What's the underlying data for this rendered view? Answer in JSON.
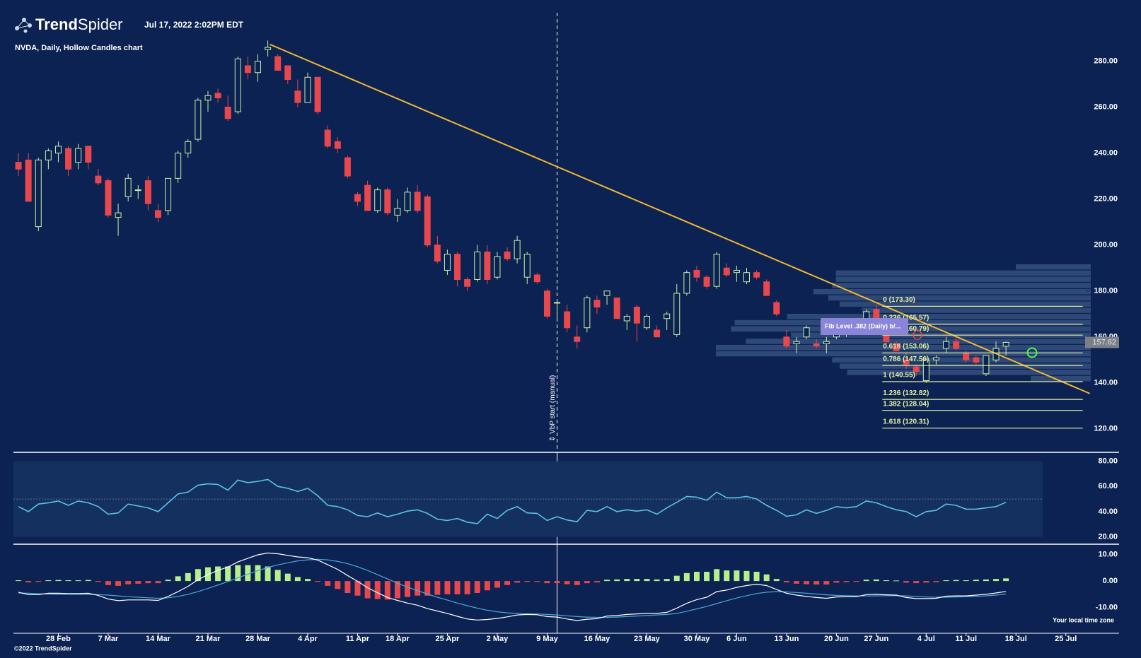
{
  "header": {
    "brand_bold": "Trend",
    "brand_light": "Spider",
    "timestamp": "Jul 17, 2022 2:02PM EDT"
  },
  "footer": {
    "copyright": "©2022 TrendSpider",
    "timezone": "Your local time zone"
  },
  "chart_data": [
    {
      "type": "candlestick",
      "title": "NVDA, Daily, Hollow Candles chart",
      "open": [
        236,
        237,
        208,
        237,
        240,
        242,
        236,
        243,
        230,
        228,
        212,
        221,
        224,
        228,
        215,
        215,
        229,
        240,
        246,
        263,
        266,
        260,
        258,
        278,
        275,
        285,
        282,
        278,
        267,
        262,
        273,
        250,
        245,
        238,
        222,
        226,
        215,
        224,
        213,
        215,
        223,
        221,
        200,
        189,
        196,
        185,
        185,
        197,
        186,
        197,
        194,
        186,
        187,
        180,
        175,
        171,
        160,
        164,
        176,
        178,
        177,
        167,
        173,
        164,
        163,
        168,
        161,
        179,
        189,
        186,
        182,
        190,
        188,
        184,
        188,
        184,
        175,
        160,
        157,
        160,
        157,
        157,
        160,
        162,
        165,
        165,
        172,
        166,
        157,
        150,
        147,
        141,
        150,
        155,
        158,
        153,
        151,
        144,
        150,
        156
      ],
      "high": [
        240,
        240,
        238,
        242,
        245,
        243,
        244,
        243,
        233,
        229,
        218,
        231,
        226,
        230,
        218,
        229,
        241,
        246,
        264,
        267,
        268,
        265,
        282,
        282,
        283,
        289,
        283,
        278,
        272,
        275,
        273,
        252,
        247,
        239,
        223,
        228,
        225,
        225,
        220,
        225,
        226,
        222,
        204,
        198,
        197,
        186,
        200,
        200,
        197,
        199,
        204,
        197,
        188,
        181,
        176,
        174,
        165,
        178,
        178,
        180,
        177,
        170,
        174,
        170,
        165,
        171,
        183,
        189,
        191,
        187,
        197,
        192,
        191,
        190,
        189,
        185,
        176,
        163,
        160,
        165,
        159,
        160,
        167,
        167,
        168,
        172,
        174,
        168,
        158,
        153,
        148,
        151,
        152,
        160,
        160,
        154,
        152,
        152,
        158,
        158
      ],
      "low": [
        230,
        219,
        206,
        233,
        236,
        230,
        233,
        233,
        226,
        212,
        204,
        219,
        220,
        215,
        210,
        213,
        227,
        238,
        245,
        258,
        262,
        254,
        257,
        272,
        271,
        282,
        276,
        270,
        260,
        262,
        257,
        242,
        240,
        229,
        217,
        215,
        214,
        213,
        210,
        214,
        214,
        199,
        192,
        187,
        182,
        180,
        184,
        183,
        185,
        193,
        192,
        183,
        183,
        168,
        167,
        162,
        155,
        162,
        170,
        174,
        168,
        163,
        158,
        163,
        160,
        163,
        160,
        178,
        184,
        181,
        181,
        186,
        184,
        183,
        185,
        178,
        169,
        155,
        153,
        159,
        155,
        153,
        159,
        160,
        161,
        164,
        166,
        157,
        154,
        146,
        143,
        140,
        148,
        153,
        154,
        149,
        148,
        143,
        149,
        152
      ],
      "close": [
        233,
        219,
        237,
        241,
        243,
        233,
        242,
        236,
        227,
        213,
        214,
        229,
        224,
        218,
        212,
        229,
        240,
        245,
        263,
        265,
        264,
        255,
        281,
        275,
        280,
        286,
        276,
        272,
        262,
        273,
        258,
        243,
        242,
        230,
        219,
        215,
        224,
        214,
        216,
        223,
        215,
        200,
        193,
        196,
        185,
        182,
        197,
        185,
        195,
        194,
        202,
        196,
        184,
        169,
        175,
        164,
        158,
        177,
        173,
        180,
        168,
        169,
        166,
        169,
        160,
        170,
        179,
        188,
        186,
        182,
        196,
        187,
        189,
        188,
        186,
        178,
        170,
        156,
        158,
        164,
        156,
        158,
        165,
        164,
        163,
        171,
        168,
        158,
        154,
        148,
        145,
        150,
        151,
        158,
        155,
        150,
        149,
        152,
        155,
        157.62
      ],
      "up_color": "#c9f2a9",
      "down_color": "#e8484d",
      "xlim": [
        -0.5,
        107.5
      ],
      "xticks": [
        {
          "value": 4,
          "label": "28 Feb"
        },
        {
          "value": 9,
          "label": "7 Mar"
        },
        {
          "value": 14,
          "label": "14 Mar"
        },
        {
          "value": 19,
          "label": "21 Mar"
        },
        {
          "value": 24,
          "label": "28 Mar"
        },
        {
          "value": 29,
          "label": "4 Apr"
        },
        {
          "value": 34,
          "label": "11 Apr"
        },
        {
          "value": 38,
          "label": "18 Apr"
        },
        {
          "value": 43,
          "label": "25 Apr"
        },
        {
          "value": 48,
          "label": "2 May"
        },
        {
          "value": 53,
          "label": "9 May"
        },
        {
          "value": 58,
          "label": "16 May"
        },
        {
          "value": 63,
          "label": "23 May"
        },
        {
          "value": 68,
          "label": "30 May"
        },
        {
          "value": 72,
          "label": "6 Jun"
        },
        {
          "value": 77,
          "label": "13 Jun"
        },
        {
          "value": 82,
          "label": "20 Jun"
        },
        {
          "value": 86,
          "label": "27 Jun"
        },
        {
          "value": 91,
          "label": "4 Jul"
        },
        {
          "value": 95,
          "label": "11 Jul"
        },
        {
          "value": 100,
          "label": "18 Jul"
        },
        {
          "value": 105,
          "label": "25 Jul"
        }
      ],
      "ylim": [
        109.8,
        306.6
      ],
      "yticks": [
        {
          "value": 280,
          "label": "280.00"
        },
        {
          "value": 260,
          "label": "260.00"
        },
        {
          "value": 240,
          "label": "240.00"
        },
        {
          "value": 220,
          "label": "220.00"
        },
        {
          "value": 200,
          "label": "200.00"
        },
        {
          "value": 180,
          "label": "180.00"
        },
        {
          "value": 160,
          "label": "160.00"
        },
        {
          "value": 140,
          "label": "140.00"
        },
        {
          "value": 120,
          "label": "120.00"
        }
      ],
      "trend_line": {
        "x": [
          25.2,
          107.4
        ],
        "values": [
          287.3,
          135.4
        ],
        "color": "#f2b631"
      },
      "fib_levels": {
        "x": [
          86.6,
          106.7
        ],
        "color": "#e4f1a2",
        "levels": [
          {
            "value": 173.3,
            "label": "0 (173.30)"
          },
          {
            "value": 165.57,
            "label": "0.236 (165.57)"
          },
          {
            "value": 160.79,
            "label": "0.382 (160.79)"
          },
          {
            "value": 153.06,
            "label": "0.618 (153.06)"
          },
          {
            "value": 147.56,
            "label": "0.786 (147.56)"
          },
          {
            "value": 140.55,
            "label": "1 (140.55)"
          },
          {
            "value": 132.82,
            "label": "1.236 (132.82)"
          },
          {
            "value": 128.04,
            "label": "1.382 (128.04)"
          },
          {
            "value": 120.31,
            "label": "1.618 (120.31)"
          }
        ]
      },
      "fib_tooltip": "Fib Level .382 (Daily) b/...",
      "vbp_x": 54,
      "vbp_label": "⇕ VbP start (manual)",
      "volume_profile": {
        "prices": [
          190.5,
          187.8,
          185.1,
          182.4,
          179.7,
          177.0,
          174.3,
          171.6,
          168.9,
          166.2,
          163.5,
          160.8,
          158.1,
          155.4,
          152.7,
          150.0,
          147.3,
          144.6,
          141.9
        ],
        "volumes": [
          20,
          68,
          68,
          69,
          74,
          70,
          67,
          61,
          81,
          95,
          96,
          80,
          92,
          100,
          100,
          69,
          67,
          65,
          16
        ],
        "color": "#3b5686"
      }
    },
    {
      "type": "line",
      "color": "#5bc0e8",
      "ylim": [
        14.2,
        87.0
      ],
      "reference": 50,
      "band": [
        20,
        80
      ],
      "yticks": [
        {
          "value": 80,
          "label": "80.00"
        },
        {
          "value": 60,
          "label": "60.00"
        },
        {
          "value": 40,
          "label": "40.00"
        },
        {
          "value": 20,
          "label": "20.00"
        }
      ],
      "values": [
        44,
        40,
        46,
        47,
        48.5,
        45,
        48.5,
        47,
        44,
        38,
        39,
        46,
        44.5,
        43,
        40,
        47,
        54,
        55.5,
        61,
        62,
        61.5,
        57,
        65,
        63,
        64,
        65.5,
        60,
        58.5,
        56,
        58.5,
        52.6,
        45,
        44,
        41.5,
        37,
        36,
        39,
        36,
        38,
        40.4,
        41.5,
        38.6,
        34,
        33,
        34.6,
        31.7,
        30.5,
        38,
        34.6,
        41,
        44,
        39,
        38.6,
        33,
        36,
        33.4,
        32,
        41,
        40,
        44,
        40,
        41.5,
        40.4,
        41.5,
        38,
        43,
        47.4,
        52,
        51.5,
        49,
        55.5,
        51,
        51,
        52,
        50,
        45,
        41,
        36.3,
        37.5,
        41.5,
        38.6,
        41,
        44,
        43,
        44,
        48.5,
        47,
        44,
        41.5,
        40,
        36,
        40,
        41,
        46,
        45,
        42,
        42,
        43,
        44,
        47.4
      ]
    },
    {
      "type": "macd",
      "ylim": [
        -19.7,
        13.9
      ],
      "yticks": [
        {
          "value": 10,
          "label": "10.00"
        },
        {
          "value": 0,
          "label": "0.00"
        },
        {
          "value": -10,
          "label": "-10.00"
        }
      ],
      "up_color": "#b6ef8c",
      "down_color": "#e8484d",
      "macd_color": "#ffffff",
      "signal_color": "#4aa8d8",
      "histogram": [
        0.3,
        -0.5,
        -0.3,
        0.3,
        0.4,
        0.3,
        0.3,
        0.4,
        -0.3,
        -1.5,
        -1.8,
        -1.2,
        -1.0,
        -0.8,
        -0.8,
        0.5,
        1.8,
        3.0,
        4.5,
        5.2,
        5.5,
        5.5,
        6,
        6,
        6,
        5.5,
        4.2,
        2.8,
        1.5,
        0.8,
        -0.3,
        -1.8,
        -3,
        -4.5,
        -5.5,
        -6.5,
        -6.8,
        -7,
        -6.5,
        -6,
        -5.5,
        -5.5,
        -5.2,
        -5,
        -5,
        -5,
        -4.5,
        -3.5,
        -2.5,
        -1.5,
        -0.6,
        -0.3,
        -0.3,
        -0.8,
        -0.8,
        -1.2,
        -1.5,
        -0.8,
        -0.5,
        0.5,
        0.6,
        0.8,
        0.8,
        0.8,
        0.6,
        0.8,
        2,
        3,
        3.5,
        3.5,
        4.5,
        4,
        4,
        3.8,
        3.5,
        2.5,
        0.8,
        -0.5,
        -1,
        -1.2,
        -1.3,
        -1.3,
        -0.6,
        -0.4,
        -0.3,
        0.5,
        0.6,
        0.3,
        0.2,
        -0.6,
        -0.8,
        -0.6,
        -0.4,
        0.3,
        0.4,
        0.3,
        0.5,
        0.6,
        0.8,
        1.0
      ],
      "macd": [
        -4.2,
        -5.1,
        -5.1,
        -4.6,
        -4.6,
        -4.7,
        -4.7,
        -4.6,
        -5.4,
        -6.8,
        -7.4,
        -7.1,
        -7.1,
        -7.1,
        -7.3,
        -5.8,
        -4.0,
        -2.0,
        0.5,
        2.4,
        4.0,
        5.3,
        7.2,
        8.6,
        9.9,
        10.6,
        10.3,
        9.7,
        9.1,
        8.8,
        7.9,
        6.2,
        4.4,
        2.1,
        -0.1,
        -2.5,
        -4.4,
        -6.2,
        -7.3,
        -8.3,
        -9.1,
        -10.4,
        -11.3,
        -12.2,
        -13.3,
        -14.3,
        -14.7,
        -14.5,
        -14.1,
        -13.5,
        -12.8,
        -12.6,
        -12.7,
        -13.4,
        -13.6,
        -14.3,
        -14.9,
        -14.4,
        -14.2,
        -13.2,
        -13.0,
        -12.6,
        -12.4,
        -12.2,
        -12.2,
        -11.8,
        -10.2,
        -8.4,
        -7.0,
        -6.1,
        -4.0,
        -3.4,
        -2.4,
        -1.7,
        -1.2,
        -1.7,
        -3.2,
        -4.6,
        -5.3,
        -5.8,
        -6.2,
        -6.5,
        -6.0,
        -5.9,
        -5.9,
        -5.1,
        -5.0,
        -5.2,
        -5.3,
        -6.2,
        -6.6,
        -6.6,
        -6.5,
        -5.7,
        -5.6,
        -5.6,
        -5.3,
        -5.0,
        -4.5,
        -3.9
      ],
      "signal": [
        -4.5,
        -4.6,
        -4.8,
        -4.9,
        -5.0,
        -5.0,
        -5.0,
        -5.0,
        -5.1,
        -5.3,
        -5.6,
        -5.9,
        -6.1,
        -6.3,
        -6.5,
        -6.3,
        -5.8,
        -5.0,
        -4.0,
        -2.8,
        -1.5,
        -0.2,
        1.2,
        2.6,
        3.9,
        5.1,
        6.1,
        6.9,
        7.6,
        8.0,
        8.2,
        8.0,
        7.4,
        6.6,
        5.4,
        4.0,
        2.4,
        0.8,
        -0.8,
        -2.3,
        -3.6,
        -4.9,
        -6.1,
        -7.2,
        -8.3,
        -9.3,
        -10.2,
        -11.0,
        -11.6,
        -12.0,
        -12.2,
        -12.3,
        -12.4,
        -12.6,
        -12.8,
        -13.1,
        -13.4,
        -13.6,
        -13.7,
        -13.7,
        -13.6,
        -13.4,
        -13.2,
        -13.0,
        -12.8,
        -12.6,
        -12.2,
        -11.4,
        -10.5,
        -9.6,
        -8.5,
        -7.4,
        -6.4,
        -5.5,
        -4.7,
        -4.2,
        -4.0,
        -4.1,
        -4.3,
        -4.6,
        -4.9,
        -5.2,
        -5.4,
        -5.5,
        -5.6,
        -5.6,
        -5.6,
        -5.5,
        -5.5,
        -5.6,
        -5.8,
        -6.0,
        -6.1,
        -6.1,
        -6.0,
        -5.9,
        -5.8,
        -5.6,
        -5.3,
        -4.9
      ]
    }
  ]
}
